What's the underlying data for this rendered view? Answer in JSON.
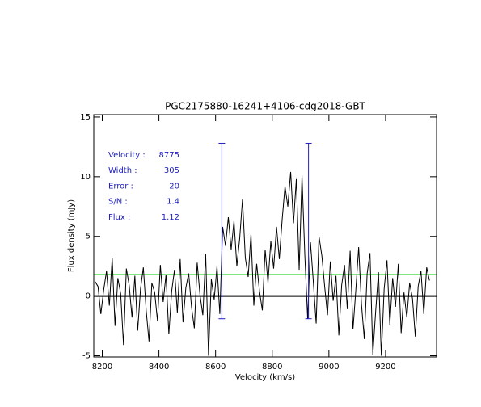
{
  "chart_data": {
    "type": "line",
    "title": "PGC2175880-16241+4106-cdg2018-GBT",
    "xlabel": "Velocity (km/s)",
    "ylabel": "Flux density (mJy)",
    "xlim": [
      8170,
      9380
    ],
    "ylim": [
      -5.1,
      15.2
    ],
    "xticks": [
      8200,
      8400,
      8600,
      8800,
      9000,
      9200
    ],
    "yticks": [
      -5,
      0,
      5,
      10,
      15
    ],
    "x": [
      8175,
      8185,
      8195,
      8205,
      8215,
      8225,
      8235,
      8245,
      8255,
      8265,
      8275,
      8285,
      8295,
      8305,
      8315,
      8325,
      8335,
      8345,
      8355,
      8365,
      8375,
      8385,
      8395,
      8405,
      8415,
      8425,
      8435,
      8445,
      8455,
      8465,
      8475,
      8485,
      8495,
      8505,
      8515,
      8525,
      8535,
      8545,
      8555,
      8565,
      8575,
      8585,
      8595,
      8605,
      8615,
      8625,
      8635,
      8645,
      8655,
      8665,
      8675,
      8685,
      8695,
      8705,
      8715,
      8725,
      8735,
      8745,
      8755,
      8765,
      8775,
      8785,
      8795,
      8805,
      8815,
      8825,
      8835,
      8845,
      8855,
      8865,
      8875,
      8885,
      8895,
      8905,
      8915,
      8925,
      8935,
      8945,
      8955,
      8965,
      8975,
      8985,
      8995,
      9005,
      9015,
      9025,
      9035,
      9045,
      9055,
      9065,
      9075,
      9085,
      9095,
      9105,
      9115,
      9125,
      9135,
      9145,
      9155,
      9165,
      9175,
      9185,
      9195,
      9205,
      9215,
      9225,
      9235,
      9245,
      9255,
      9265,
      9275,
      9285,
      9295,
      9305,
      9315,
      9325,
      9335,
      9345,
      9355
    ],
    "series": [
      {
        "color": "#000000",
        "values": [
          1.2,
          0.8,
          -1.5,
          0.5,
          2.1,
          -0.8,
          3.2,
          -2.5,
          1.5,
          0.2,
          -4.1,
          2.3,
          0.9,
          -1.8,
          1.7,
          -2.9,
          0.6,
          2.4,
          -1.2,
          -3.8,
          1.1,
          0.3,
          -2.1,
          2.6,
          -0.5,
          1.8,
          -3.2,
          0.4,
          2.2,
          -1.4,
          3.1,
          -2.2,
          0.7,
          1.9,
          -0.9,
          -2.7,
          2.8,
          0.1,
          -1.6,
          3.5,
          -5.0,
          1.4,
          -0.3,
          2.5,
          -1.5,
          5.8,
          4.2,
          6.6,
          3.9,
          6.3,
          2.5,
          4.8,
          8.1,
          3.2,
          1.6,
          5.2,
          -0.8,
          2.7,
          0.4,
          -1.2,
          3.9,
          1.1,
          4.6,
          2.3,
          5.8,
          3.1,
          6.4,
          9.2,
          7.5,
          10.4,
          6.1,
          9.8,
          2.2,
          10.1,
          3.4,
          -1.9,
          4.5,
          1.2,
          -2.3,
          5.0,
          3.4,
          0.8,
          -1.6,
          2.9,
          -0.4,
          1.7,
          -3.3,
          0.9,
          2.6,
          -1.1,
          3.8,
          -2.8,
          0.5,
          4.1,
          -0.7,
          -3.6,
          1.9,
          3.6,
          -4.9,
          -1.3,
          2.0,
          -5.0,
          0.6,
          3.0,
          -2.4,
          1.5,
          -0.9,
          2.7,
          -3.1,
          0.3,
          -1.8,
          1.1,
          -0.2,
          -3.4,
          0.8,
          2.1,
          -1.5,
          2.4,
          1.3
        ]
      }
    ],
    "zero_line": {
      "value": 0,
      "color": "#000000"
    },
    "reference_line": {
      "value": 1.8,
      "color": "#00cc00"
    },
    "markers": {
      "x": [
        8622,
        8928
      ],
      "ymin": -1.9,
      "ymax": 12.8,
      "color": "#2020c0"
    },
    "annotation_color": "#2020c0",
    "annotations": [
      {
        "label": "Velocity :",
        "value": 8775
      },
      {
        "label": "Width :",
        "value": 305
      },
      {
        "label": "Error :",
        "value": 20
      },
      {
        "label": "S/N :",
        "value": 1.4
      },
      {
        "label": "Flux :",
        "value": 1.12
      }
    ]
  }
}
